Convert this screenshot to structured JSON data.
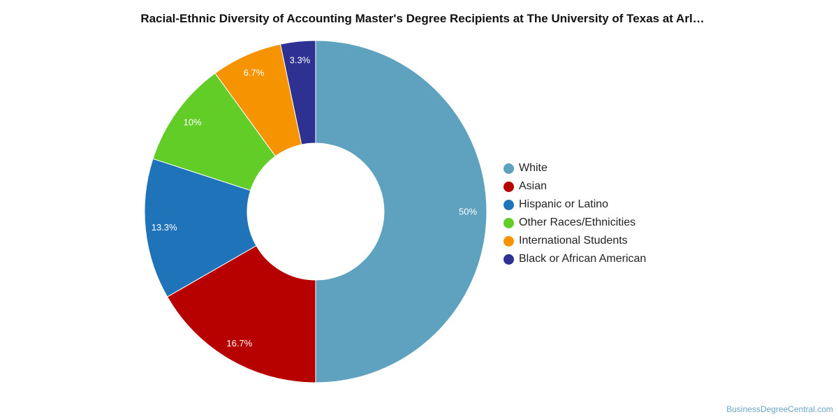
{
  "chart_data": {
    "type": "pie",
    "title": "Racial-Ethnic Diversity of Accounting Master's Degree Recipients at The University of Texas at Arl…",
    "legend_position": "right",
    "slices": [
      {
        "label": "White",
        "value": 50,
        "display": "50%",
        "color": "#5fa2bf"
      },
      {
        "label": "Asian",
        "value": 16.7,
        "display": "16.7%",
        "color": "#b70000"
      },
      {
        "label": "Hispanic or Latino",
        "value": 13.3,
        "display": "13.3%",
        "color": "#1f74b9"
      },
      {
        "label": "Other Races/Ethnicities",
        "value": 10,
        "display": "10%",
        "color": "#62cd26"
      },
      {
        "label": "International Students",
        "value": 6.7,
        "display": "6.7%",
        "color": "#f59400"
      },
      {
        "label": "Black or African American",
        "value": 3.3,
        "display": "3.3%",
        "color": "#2e3192"
      }
    ]
  },
  "watermark": "BusinessDegreeCentral.com"
}
